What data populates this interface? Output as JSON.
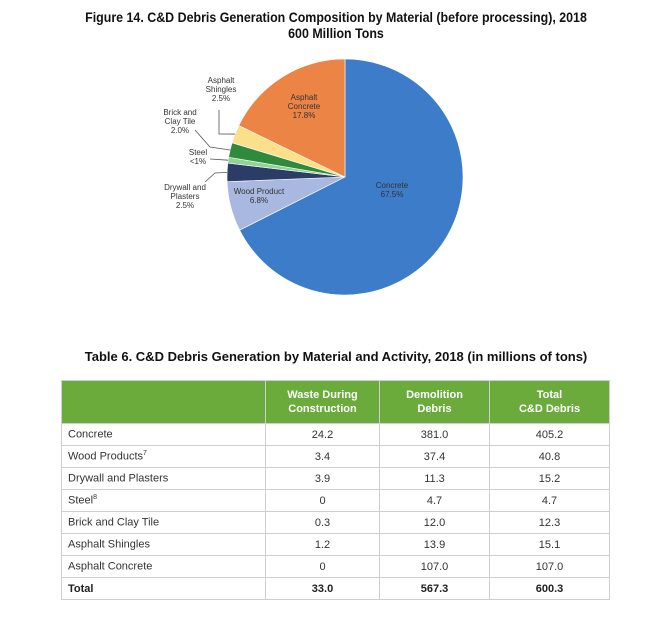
{
  "chart_data": {
    "type": "pie",
    "title": "Figure 14. C&D Debris Generation Composition by Material (before processing), 2018",
    "subtitle": "600 Million Tons",
    "slices": [
      {
        "label": "Concrete",
        "display": "67.5%",
        "value": 67.5,
        "color": "#3d7cc9"
      },
      {
        "label": "Wood Product",
        "display": "6.8%",
        "value": 6.8,
        "color": "#a9b8e0"
      },
      {
        "label": "Drywall and Plasters",
        "display": "2.5%",
        "value": 2.5,
        "color": "#2b3c66"
      },
      {
        "label": "Steel",
        "display": "<1%",
        "value": 0.8,
        "color": "#93d394"
      },
      {
        "label": "Brick and Clay Tile",
        "display": "2.0%",
        "value": 2.0,
        "color": "#2f8a3b"
      },
      {
        "label": "Asphalt Shingles",
        "display": "2.5%",
        "value": 2.5,
        "color": "#fbe08c"
      },
      {
        "label": "Asphalt Concrete",
        "display": "17.8%",
        "value": 17.8,
        "color": "#ec8446"
      }
    ]
  },
  "table": {
    "title": "Table 6. C&D Debris Generation by Material and Activity, 2018 (in millions of tons)",
    "header_color": "#6aab3c",
    "columns": [
      {
        "l1": "Waste During",
        "l2": "Construction"
      },
      {
        "l1": "Demolition",
        "l2": "Debris"
      },
      {
        "l1": "Total",
        "l2": "C&D Debris"
      }
    ],
    "rows": [
      {
        "label": "Concrete",
        "sup": "",
        "values": [
          "24.2",
          "381.0",
          "405.2"
        ]
      },
      {
        "label": "Wood Products",
        "sup": "7",
        "values": [
          "3.4",
          "37.4",
          "40.8"
        ]
      },
      {
        "label": "Drywall and Plasters",
        "sup": "",
        "values": [
          "3.9",
          "11.3",
          "15.2"
        ]
      },
      {
        "label": "Steel",
        "sup": "8",
        "values": [
          "0",
          "4.7",
          "4.7"
        ]
      },
      {
        "label": "Brick and Clay Tile",
        "sup": "",
        "values": [
          "0.3",
          "12.0",
          "12.3"
        ]
      },
      {
        "label": "Asphalt Shingles",
        "sup": "",
        "values": [
          "1.2",
          "13.9",
          "15.1"
        ]
      },
      {
        "label": "Asphalt Concrete",
        "sup": "",
        "values": [
          "0",
          "107.0",
          "107.0"
        ]
      }
    ],
    "total": {
      "label": "Total",
      "values": [
        "33.0",
        "567.3",
        "600.3"
      ]
    }
  }
}
